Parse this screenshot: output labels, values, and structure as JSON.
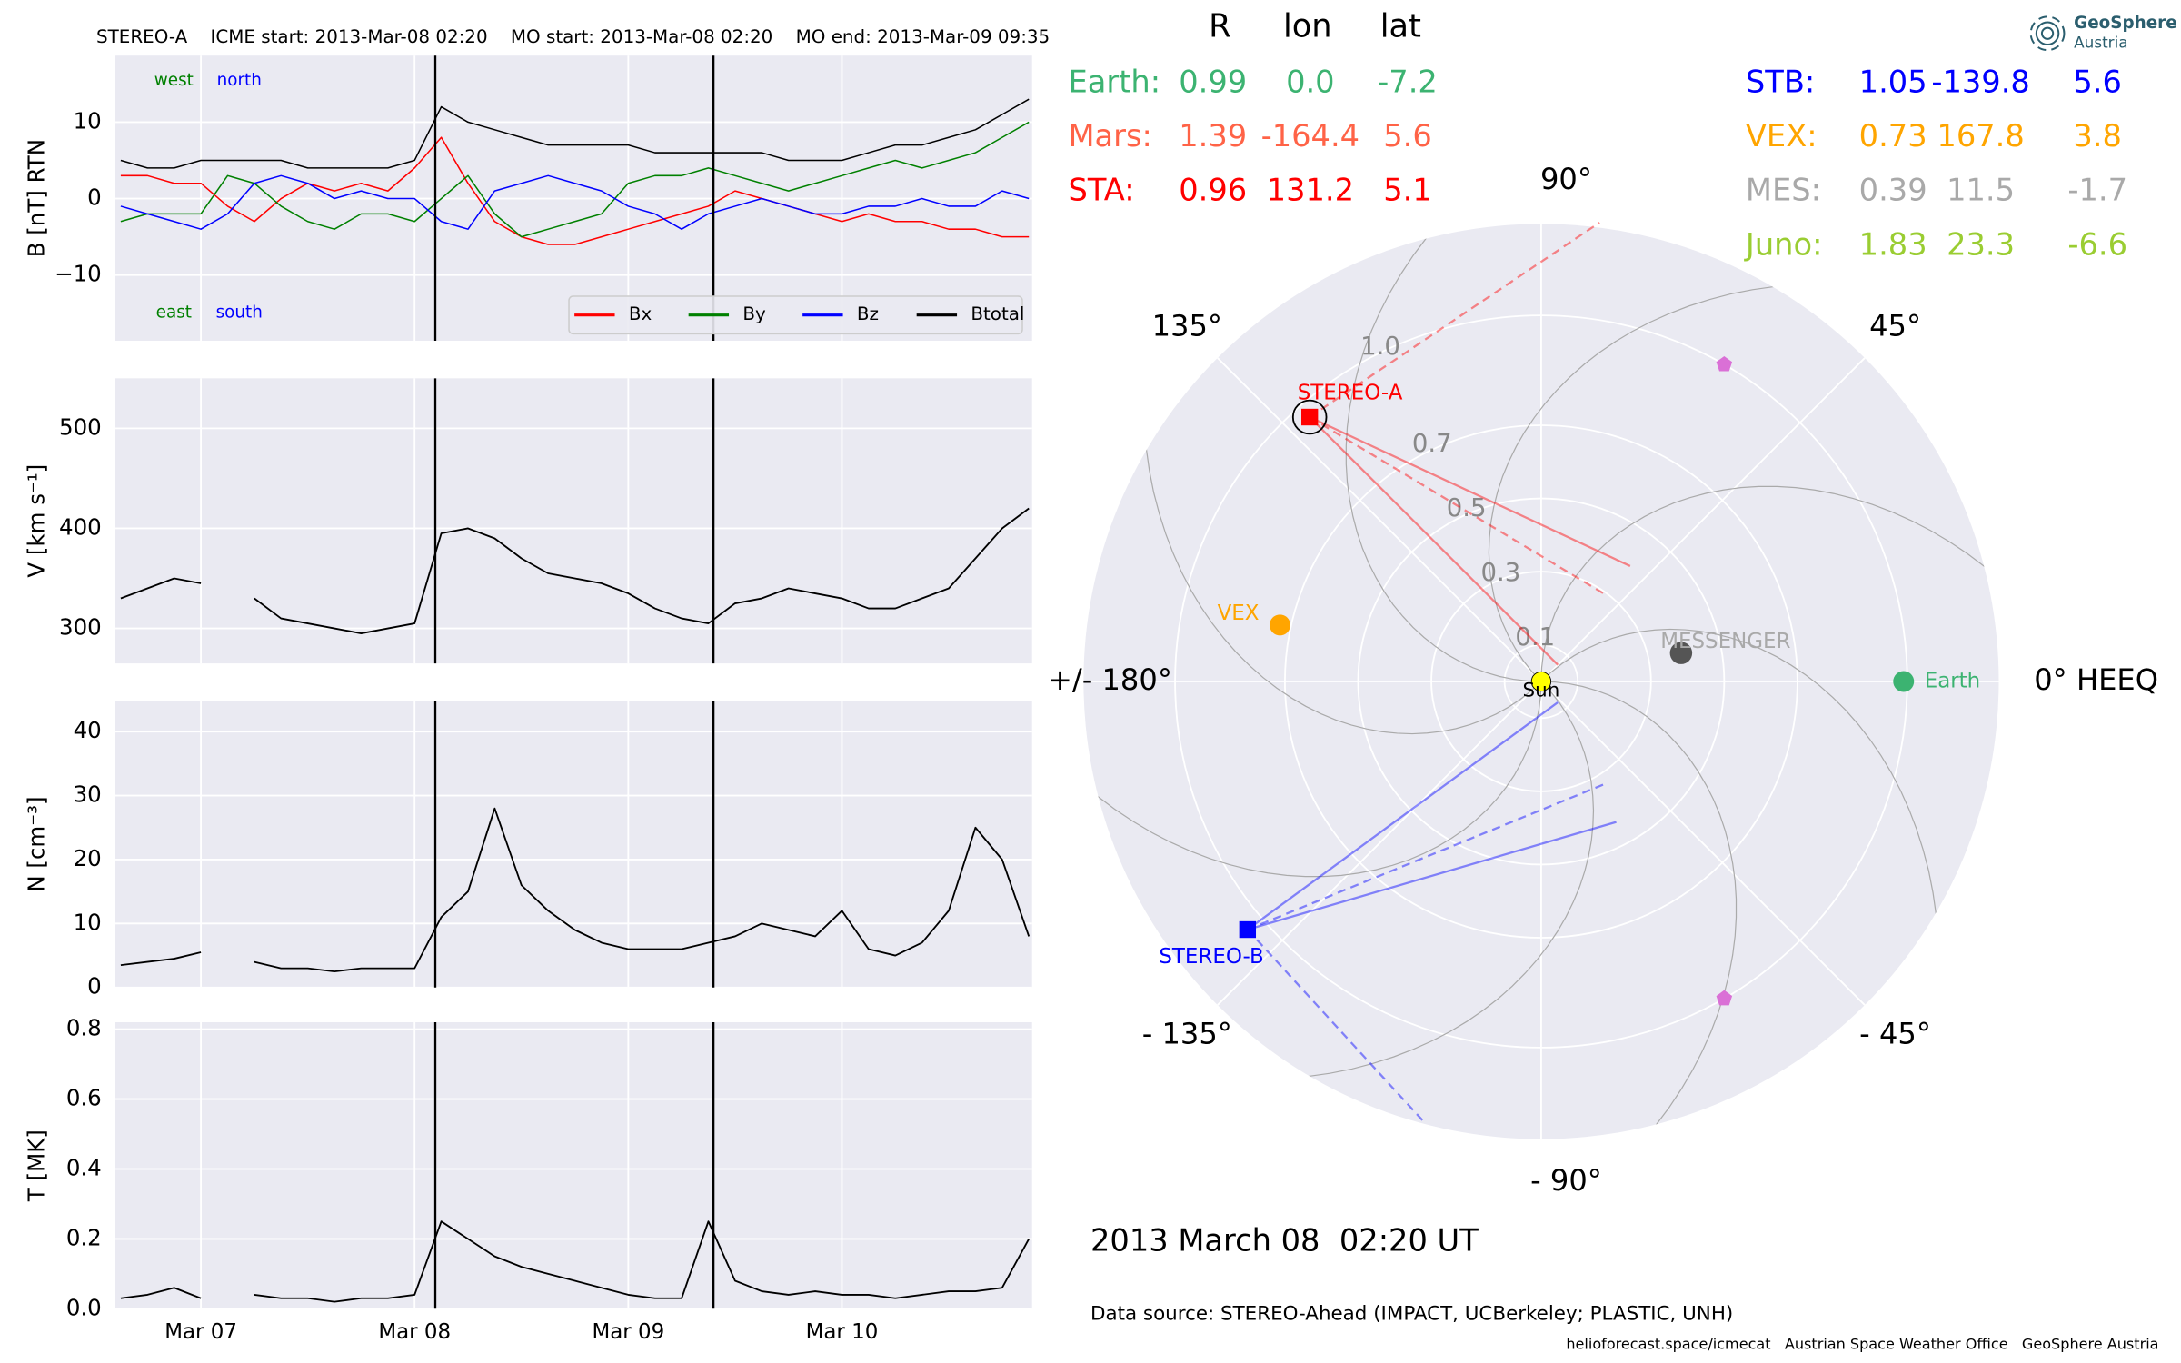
{
  "chart_data": [
    {
      "type": "line",
      "title": "STEREO-A    ICME start: 2013-Mar-08 02:20    MO start: 2013-Mar-08 02:20    MO end: 2013-Mar-09 09:35",
      "ylabel": "B [nT] RTN",
      "x": [
        6.625,
        6.75,
        6.875,
        7,
        7.125,
        7.25,
        7.375,
        7.5,
        7.625,
        7.75,
        7.875,
        8,
        8.125,
        8.25,
        8.375,
        8.5,
        8.625,
        8.75,
        8.875,
        9,
        9.125,
        9.25,
        9.375,
        9.5,
        9.625,
        9.75,
        9.875,
        10,
        10.125,
        10.25,
        10.375,
        10.5,
        10.625,
        10.75,
        10.875
      ],
      "xlim": [
        6.6,
        10.89
      ],
      "ylim": [
        -18.6,
        18.7
      ],
      "yticks": [
        {
          "value": -10,
          "label": "−10"
        },
        0,
        10
      ],
      "vlines": [
        8.097,
        9.399
      ],
      "grid": true,
      "legend": "lower right",
      "annotations": [
        {
          "text": "west",
          "color": "#008000"
        },
        {
          "text": "north",
          "color": "#0000ff"
        },
        {
          "text": "east",
          "color": "#008000"
        },
        {
          "text": "south",
          "color": "#0000ff"
        }
      ],
      "series": [
        {
          "name": "Bx",
          "color": "#ff0000",
          "values": [
            3,
            3,
            2,
            2,
            -1,
            -3,
            0,
            2,
            1,
            2,
            1,
            4,
            8,
            2,
            -3,
            -5,
            -6,
            -6,
            -5,
            -4,
            -3,
            -2,
            -1,
            1,
            0,
            -1,
            -2,
            -3,
            -2,
            -3,
            -3,
            -4,
            -4,
            -5,
            -5
          ]
        },
        {
          "name": "By",
          "color": "#008000",
          "values": [
            -3,
            -2,
            -2,
            -2,
            3,
            2,
            -1,
            -3,
            -4,
            -2,
            -2,
            -3,
            0,
            3,
            -2,
            -5,
            -4,
            -3,
            -2,
            2,
            3,
            3,
            4,
            3,
            2,
            1,
            2,
            3,
            4,
            5,
            4,
            5,
            6,
            8,
            10
          ]
        },
        {
          "name": "Bz",
          "color": "#0000ff",
          "values": [
            -1,
            -2,
            -3,
            -4,
            -2,
            2,
            3,
            2,
            0,
            1,
            0,
            0,
            -3,
            -4,
            1,
            2,
            3,
            2,
            1,
            -1,
            -2,
            -4,
            -2,
            -1,
            0,
            -1,
            -2,
            -2,
            -1,
            -1,
            0,
            -1,
            -1,
            1,
            0
          ]
        },
        {
          "name": "Btotal",
          "color": "#000000",
          "values": [
            5,
            4,
            4,
            5,
            5,
            5,
            5,
            4,
            4,
            4,
            4,
            5,
            12,
            10,
            9,
            8,
            7,
            7,
            7,
            7,
            6,
            6,
            6,
            6,
            6,
            5,
            5,
            5,
            6,
            7,
            7,
            8,
            9,
            11,
            13
          ]
        }
      ]
    },
    {
      "type": "line",
      "ylabel": "V [km s⁻¹]",
      "x": [
        6.625,
        6.75,
        6.875,
        7,
        7.125,
        7.25,
        7.375,
        7.5,
        7.625,
        7.75,
        7.875,
        8,
        8.125,
        8.25,
        8.375,
        8.5,
        8.625,
        8.75,
        8.875,
        9,
        9.125,
        9.25,
        9.375,
        9.5,
        9.625,
        9.75,
        9.875,
        10,
        10.125,
        10.25,
        10.375,
        10.5,
        10.625,
        10.75,
        10.875
      ],
      "xlim": [
        6.6,
        10.89
      ],
      "ylim": [
        265,
        550
      ],
      "yticks": [
        300,
        400,
        500
      ],
      "grid": true,
      "color": "#000000",
      "values": [
        330,
        340,
        350,
        345,
        null,
        330,
        310,
        305,
        300,
        295,
        300,
        305,
        395,
        400,
        390,
        370,
        355,
        350,
        345,
        335,
        320,
        310,
        305,
        325,
        330,
        340,
        335,
        330,
        320,
        320,
        330,
        340,
        370,
        400,
        420
      ]
    },
    {
      "type": "line",
      "ylabel": "N [cm⁻³]",
      "x": [
        6.625,
        6.75,
        6.875,
        7,
        7.125,
        7.25,
        7.375,
        7.5,
        7.625,
        7.75,
        7.875,
        8,
        8.125,
        8.25,
        8.375,
        8.5,
        8.625,
        8.75,
        8.875,
        9,
        9.125,
        9.25,
        9.375,
        9.5,
        9.625,
        9.75,
        9.875,
        10,
        10.125,
        10.25,
        10.375,
        10.5,
        10.625,
        10.75,
        10.875
      ],
      "xlim": [
        6.6,
        10.89
      ],
      "ylim": [
        0,
        44.8
      ],
      "yticks": [
        0,
        10,
        20,
        30,
        40
      ],
      "grid": true,
      "color": "#000000",
      "values": [
        3.5,
        4,
        4.5,
        5.5,
        null,
        4,
        3,
        3,
        2.5,
        3,
        3,
        3,
        11,
        15,
        28,
        16,
        12,
        9,
        7,
        6,
        6,
        6,
        7,
        8,
        10,
        9,
        8,
        12,
        6,
        5,
        7,
        12,
        25,
        20,
        8
      ]
    },
    {
      "type": "line",
      "ylabel": "T [MK]",
      "x": [
        6.625,
        6.75,
        6.875,
        7,
        7.125,
        7.25,
        7.375,
        7.5,
        7.625,
        7.75,
        7.875,
        8,
        8.125,
        8.25,
        8.375,
        8.5,
        8.625,
        8.75,
        8.875,
        9,
        9.125,
        9.25,
        9.375,
        9.5,
        9.625,
        9.75,
        9.875,
        10,
        10.125,
        10.25,
        10.375,
        10.5,
        10.625,
        10.75,
        10.875
      ],
      "xlim": [
        6.6,
        10.89
      ],
      "ylim": [
        0,
        0.82
      ],
      "xticks": [
        {
          "value": 7,
          "label": "Mar 07"
        },
        {
          "value": 8,
          "label": "Mar 08"
        },
        {
          "value": 9,
          "label": "Mar 09"
        },
        {
          "value": 10,
          "label": "Mar 10"
        }
      ],
      "yticks": [
        {
          "value": 0,
          "label": "0.0"
        },
        0.2,
        0.4,
        0.6,
        0.8
      ],
      "grid": true,
      "color": "#000000",
      "values": [
        0.03,
        0.04,
        0.06,
        0.03,
        null,
        0.04,
        0.03,
        0.03,
        0.02,
        0.03,
        0.03,
        0.04,
        0.25,
        0.2,
        0.15,
        0.12,
        0.1,
        0.08,
        0.06,
        0.04,
        0.03,
        0.03,
        0.25,
        0.08,
        0.05,
        0.04,
        0.05,
        0.04,
        0.04,
        0.03,
        0.04,
        0.05,
        0.05,
        0.06,
        0.2
      ]
    },
    {
      "type": "polar",
      "columns": [
        "R",
        "lon",
        "lat"
      ],
      "rlim": [
        0,
        1.25
      ],
      "rticks": [
        0.1,
        0.3,
        0.5,
        0.7,
        {
          "value": 1,
          "label": "1.0"
        }
      ],
      "thetaticks": [
        {
          "value": 0,
          "label": "0° HEEQ"
        },
        {
          "value": 45,
          "label": "45°"
        },
        {
          "value": 90,
          "label": "90°"
        },
        {
          "value": 135,
          "label": "135°"
        },
        {
          "value": 180,
          "label": "+/- 180°"
        },
        {
          "value": -135,
          "label": "- 135°"
        },
        {
          "value": -90,
          "label": "- 90°"
        },
        {
          "value": -45,
          "label": "- 45°"
        }
      ],
      "sun_label": "Sun",
      "bodies": [
        {
          "name": "Earth:",
          "label": "Earth",
          "color": "#3cb371",
          "values": [
            0.99,
            0,
            -7.2
          ],
          "value_labels": [
            "0.99",
            "0.0",
            "-7.2"
          ]
        },
        {
          "name": "Mars:",
          "color": "#ff6347",
          "values": [
            1.39,
            -164.4,
            5.6
          ]
        },
        {
          "name": "STA:",
          "label": "STEREO-A",
          "color": "#ff0000",
          "values": [
            0.96,
            131.2,
            5.1
          ]
        },
        {
          "name": "STB:",
          "label": "STEREO-B",
          "color": "#0000ff",
          "values": [
            1.05,
            -139.8,
            5.6
          ]
        },
        {
          "name": "VEX:",
          "label": "VEX",
          "color": "#ffa500",
          "values": [
            0.73,
            167.8,
            3.8
          ]
        },
        {
          "name": "MES:",
          "label": "MESSENGER",
          "color": "#a9a9a9",
          "values": [
            0.39,
            11.5,
            -1.7
          ]
        },
        {
          "name": "Juno:",
          "color": "#9acd32",
          "values": [
            1.83,
            23.3,
            -6.6
          ]
        }
      ],
      "markers": [
        {
          "r": 1,
          "lon": 60
        },
        {
          "r": 1,
          "lon": -60
        }
      ],
      "marker_color": "#da70d6"
    }
  ],
  "date": "2013 March 08  02:20 UT",
  "source": "Data source: STEREO-Ahead (IMPACT, UCBerkeley; PLASTIC, UNH)",
  "footer": "helioforecast.space/icmecat   Austrian Space Weather Office   GeoSphere Austria",
  "logo": {
    "name": "GeoSphere",
    "sub": "Austria"
  }
}
